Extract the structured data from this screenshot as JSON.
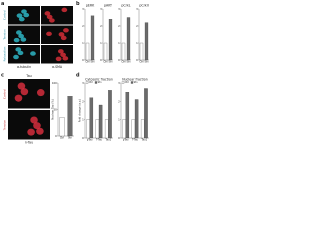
{
  "panels": {
    "a": {
      "letter": "a",
      "row_labels": [
        "Control",
        "Tension",
        "Relaxation"
      ],
      "column_labels": [
        "α-tubulin",
        "α-SMA"
      ]
    },
    "b": {
      "letter": "b",
      "charts": [
        {
          "type": "bar",
          "title": "pERK",
          "categories": [
            "Ctrl",
            "Stn"
          ],
          "values": [
            1,
            2.6
          ],
          "colors": [
            "#ffffff",
            "#6b6b6b"
          ],
          "ylim": [
            0,
            3
          ],
          "yticks": [
            0,
            1,
            2,
            3
          ]
        },
        {
          "type": "bar",
          "title": "pAKT",
          "categories": [
            "Ctrl",
            "Stn"
          ],
          "values": [
            1,
            2.4
          ],
          "colors": [
            "#ffffff",
            "#6b6b6b"
          ],
          "ylim": [
            0,
            3
          ],
          "yticks": [
            0,
            1,
            2,
            3
          ]
        },
        {
          "type": "bar",
          "title": "pCrkL",
          "categories": [
            "Ctrl",
            "Stn"
          ],
          "values": [
            1,
            2.5
          ],
          "colors": [
            "#ffffff",
            "#6b6b6b"
          ],
          "ylim": [
            0,
            3
          ],
          "yticks": [
            0,
            1,
            2,
            3
          ]
        },
        {
          "type": "bar",
          "title": "pCrkII",
          "categories": [
            "Ctrl",
            "Stn"
          ],
          "values": [
            1,
            2.2
          ],
          "colors": [
            "#ffffff",
            "#6b6b6b"
          ],
          "ylim": [
            0,
            3
          ],
          "yticks": [
            0,
            1,
            2,
            3
          ]
        }
      ]
    },
    "c": {
      "letter": "c",
      "title": "Tau",
      "row_labels": [
        "Control",
        "Tension"
      ],
      "stain_label": "n-Tau",
      "chart": {
        "type": "bar",
        "y_label": "Nuclear Tau (%)",
        "categories": [
          "Ctrl",
          "Stn"
        ],
        "values": [
          35,
          75
        ],
        "colors": [
          "#ffffff",
          "#6b6b6b"
        ],
        "ylim": [
          0,
          100
        ],
        "yticks": [
          0,
          50,
          100
        ]
      }
    },
    "d": {
      "letter": "d",
      "charts": [
        {
          "type": "grouped-bar",
          "title": "Cytosolic fraction",
          "y_label": "Fold change (a.u.)",
          "categories": [
            "pTau",
            "T-Tau",
            "Tau1"
          ],
          "series": [
            {
              "name": "Ctrl",
              "color": "#ffffff",
              "values": [
                1,
                1,
                1
              ]
            },
            {
              "name": "Stn",
              "color": "#6b6b6b",
              "values": [
                2.2,
                1.8,
                2.6
              ]
            }
          ],
          "ylim": [
            0,
            3
          ],
          "yticks": [
            0,
            1,
            2,
            3
          ]
        },
        {
          "type": "grouped-bar",
          "title": "Nuclear fraction",
          "categories": [
            "pTau",
            "T-Tau",
            "Tau1"
          ],
          "series": [
            {
              "name": "Ctrl",
              "color": "#ffffff",
              "values": [
                1,
                1,
                1
              ]
            },
            {
              "name": "Stn",
              "color": "#6b6b6b",
              "values": [
                2.5,
                2.1,
                2.7
              ]
            }
          ],
          "ylim": [
            0,
            3
          ],
          "yticks": [
            0,
            1,
            2,
            3
          ]
        }
      ]
    }
  }
}
